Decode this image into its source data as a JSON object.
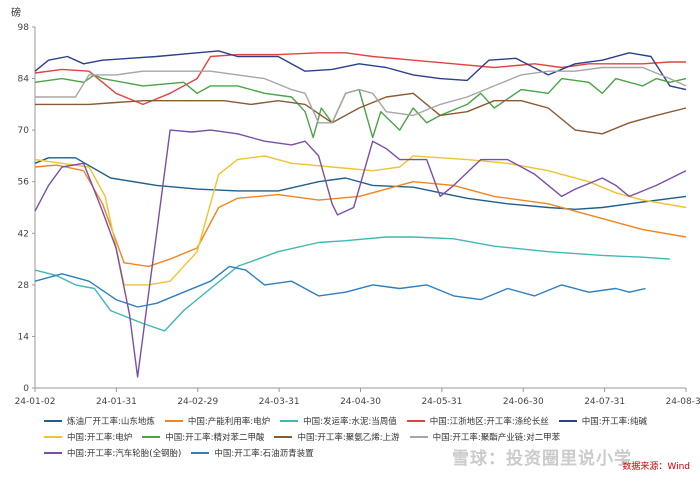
{
  "unit_label": "磅",
  "source_text": "数据来源：Wind",
  "watermark_text": "雪球：投资圈里说小学",
  "chart_data": {
    "type": "line",
    "ylim": [
      0,
      98
    ],
    "yticks": [
      0,
      14,
      28,
      42,
      56,
      70,
      84,
      98
    ],
    "xticks": [
      "24-01-02",
      "24-01-31",
      "24-02-29",
      "24-03-31",
      "24-04-30",
      "24-05-31",
      "24-06-30",
      "24-07-31",
      "24-08-30"
    ],
    "xlim_days": [
      0,
      241
    ],
    "grid": false,
    "legend_position": "bottom",
    "series": [
      {
        "name": "炼油厂开工率:山东地炼",
        "color": "#1f5f8b",
        "points": [
          [
            0,
            61
          ],
          [
            5,
            62.5
          ],
          [
            15,
            62.5
          ],
          [
            28,
            57
          ],
          [
            45,
            55
          ],
          [
            60,
            54
          ],
          [
            75,
            53.5
          ],
          [
            90,
            53.5
          ],
          [
            105,
            56
          ],
          [
            115,
            57
          ],
          [
            125,
            55
          ],
          [
            140,
            54.5
          ],
          [
            160,
            51.5
          ],
          [
            175,
            50
          ],
          [
            190,
            49
          ],
          [
            200,
            48.5
          ],
          [
            210,
            49
          ],
          [
            225,
            50.5
          ],
          [
            241,
            52
          ]
        ]
      },
      {
        "name": "中国:产能利用率:电炉",
        "color": "#f0861e",
        "points": [
          [
            0,
            60
          ],
          [
            8,
            60.5
          ],
          [
            18,
            59
          ],
          [
            25,
            50
          ],
          [
            33,
            34
          ],
          [
            42,
            33
          ],
          [
            50,
            35
          ],
          [
            60,
            38
          ],
          [
            68,
            49
          ],
          [
            75,
            51.5
          ],
          [
            90,
            52.5
          ],
          [
            105,
            51
          ],
          [
            120,
            52
          ],
          [
            130,
            54
          ],
          [
            140,
            56
          ],
          [
            155,
            55
          ],
          [
            170,
            52
          ],
          [
            190,
            50
          ],
          [
            210,
            46
          ],
          [
            225,
            43
          ],
          [
            241,
            41
          ]
        ]
      },
      {
        "name": "中国:发运率:水泥:当周值",
        "color": "#3fb8b4",
        "points": [
          [
            0,
            32
          ],
          [
            8,
            30.5
          ],
          [
            15,
            28
          ],
          [
            22,
            27
          ],
          [
            28,
            21
          ],
          [
            40,
            17.5
          ],
          [
            48,
            15.5
          ],
          [
            55,
            21
          ],
          [
            65,
            27
          ],
          [
            75,
            33
          ],
          [
            90,
            37
          ],
          [
            105,
            39.5
          ],
          [
            115,
            40
          ],
          [
            130,
            41
          ],
          [
            140,
            41
          ],
          [
            155,
            40.5
          ],
          [
            170,
            38.5
          ],
          [
            190,
            37
          ],
          [
            210,
            36
          ],
          [
            225,
            35.5
          ],
          [
            235,
            35
          ]
        ]
      },
      {
        "name": "中国:江浙地区:开工率:涤纶长丝",
        "color": "#e2433f",
        "points": [
          [
            0,
            85.5
          ],
          [
            10,
            86.5
          ],
          [
            20,
            86
          ],
          [
            30,
            80
          ],
          [
            40,
            77
          ],
          [
            50,
            80
          ],
          [
            60,
            84
          ],
          [
            65,
            90
          ],
          [
            75,
            90.5
          ],
          [
            90,
            90.5
          ],
          [
            105,
            91
          ],
          [
            115,
            91
          ],
          [
            125,
            90
          ],
          [
            140,
            89
          ],
          [
            155,
            88
          ],
          [
            170,
            87
          ],
          [
            185,
            88
          ],
          [
            195,
            87
          ],
          [
            205,
            88
          ],
          [
            215,
            88
          ],
          [
            225,
            88
          ],
          [
            235,
            88.5
          ],
          [
            241,
            88.5
          ]
        ]
      },
      {
        "name": "中国:开工率:纯碱",
        "color": "#2b3f8c",
        "points": [
          [
            0,
            86
          ],
          [
            5,
            89
          ],
          [
            12,
            90
          ],
          [
            18,
            88
          ],
          [
            25,
            89
          ],
          [
            35,
            89.5
          ],
          [
            45,
            90
          ],
          [
            60,
            91
          ],
          [
            68,
            91.5
          ],
          [
            75,
            90
          ],
          [
            90,
            90
          ],
          [
            100,
            86
          ],
          [
            110,
            86.5
          ],
          [
            120,
            88
          ],
          [
            130,
            87
          ],
          [
            140,
            85
          ],
          [
            150,
            84
          ],
          [
            160,
            83.5
          ],
          [
            168,
            89
          ],
          [
            178,
            89.5
          ],
          [
            190,
            85
          ],
          [
            200,
            88
          ],
          [
            210,
            89
          ],
          [
            220,
            91
          ],
          [
            228,
            90
          ],
          [
            235,
            82
          ],
          [
            241,
            81
          ]
        ]
      },
      {
        "name": "中国:开工率:电炉",
        "color": "#f1c232",
        "points": [
          [
            0,
            62
          ],
          [
            10,
            61
          ],
          [
            20,
            60
          ],
          [
            26,
            52
          ],
          [
            33,
            28
          ],
          [
            42,
            28
          ],
          [
            50,
            29
          ],
          [
            60,
            37
          ],
          [
            68,
            58
          ],
          [
            75,
            62
          ],
          [
            85,
            63
          ],
          [
            95,
            61
          ],
          [
            110,
            60
          ],
          [
            125,
            59
          ],
          [
            135,
            60
          ],
          [
            140,
            63
          ],
          [
            160,
            62
          ],
          [
            175,
            61
          ],
          [
            190,
            59
          ],
          [
            205,
            56
          ],
          [
            215,
            53
          ],
          [
            225,
            51
          ],
          [
            241,
            49
          ]
        ]
      },
      {
        "name": "中国:开工率:精对苯二甲酸",
        "color": "#4aa347",
        "points": [
          [
            0,
            83
          ],
          [
            10,
            84
          ],
          [
            18,
            83
          ],
          [
            22,
            85
          ],
          [
            25,
            84
          ],
          [
            40,
            82
          ],
          [
            55,
            83
          ],
          [
            60,
            80
          ],
          [
            65,
            82
          ],
          [
            75,
            82
          ],
          [
            85,
            80
          ],
          [
            95,
            79
          ],
          [
            100,
            75
          ],
          [
            103,
            68
          ],
          [
            106,
            76
          ],
          [
            110,
            72
          ],
          [
            115,
            80
          ],
          [
            120,
            81
          ],
          [
            125,
            68
          ],
          [
            128,
            75
          ],
          [
            135,
            70
          ],
          [
            140,
            76
          ],
          [
            145,
            72
          ],
          [
            150,
            74
          ],
          [
            160,
            77
          ],
          [
            165,
            80
          ],
          [
            170,
            76
          ],
          [
            180,
            81
          ],
          [
            190,
            80
          ],
          [
            195,
            84
          ],
          [
            205,
            83
          ],
          [
            210,
            80
          ],
          [
            215,
            84
          ],
          [
            220,
            83
          ],
          [
            225,
            82
          ],
          [
            230,
            84
          ],
          [
            235,
            83
          ],
          [
            241,
            84
          ]
        ]
      },
      {
        "name": "中国:开工率:聚氨乙烯:上游",
        "color": "#8a5a32",
        "points": [
          [
            0,
            77
          ],
          [
            10,
            77
          ],
          [
            20,
            77
          ],
          [
            30,
            77.5
          ],
          [
            40,
            78
          ],
          [
            50,
            78
          ],
          [
            60,
            78
          ],
          [
            70,
            78
          ],
          [
            80,
            77
          ],
          [
            90,
            78
          ],
          [
            100,
            77
          ],
          [
            110,
            72
          ],
          [
            120,
            76
          ],
          [
            130,
            79
          ],
          [
            140,
            80
          ],
          [
            145,
            77
          ],
          [
            150,
            74
          ],
          [
            160,
            75
          ],
          [
            170,
            78
          ],
          [
            180,
            78
          ],
          [
            190,
            76
          ],
          [
            200,
            70
          ],
          [
            210,
            69
          ],
          [
            220,
            72
          ],
          [
            230,
            74
          ],
          [
            241,
            76
          ]
        ]
      },
      {
        "name": "中国:开工率:聚酯产业链:对二甲苯",
        "color": "#a6a6a6",
        "points": [
          [
            0,
            79
          ],
          [
            15,
            79
          ],
          [
            20,
            85
          ],
          [
            30,
            85
          ],
          [
            40,
            86
          ],
          [
            55,
            86
          ],
          [
            65,
            86
          ],
          [
            75,
            85
          ],
          [
            85,
            84
          ],
          [
            95,
            81
          ],
          [
            100,
            80
          ],
          [
            105,
            72
          ],
          [
            110,
            72
          ],
          [
            115,
            80
          ],
          [
            120,
            81
          ],
          [
            125,
            80
          ],
          [
            130,
            75
          ],
          [
            140,
            74
          ],
          [
            150,
            77
          ],
          [
            160,
            79
          ],
          [
            170,
            82
          ],
          [
            180,
            85
          ],
          [
            190,
            86
          ],
          [
            200,
            86
          ],
          [
            210,
            87
          ],
          [
            225,
            87
          ],
          [
            235,
            84
          ],
          [
            241,
            82
          ]
        ]
      },
      {
        "name": "中国:开工率:汽车轮胎(全钢胎)",
        "color": "#7a4fa8",
        "points": [
          [
            0,
            48
          ],
          [
            5,
            55
          ],
          [
            10,
            60
          ],
          [
            18,
            61
          ],
          [
            25,
            48
          ],
          [
            30,
            38
          ],
          [
            35,
            20
          ],
          [
            38,
            3
          ],
          [
            41,
            20
          ],
          [
            45,
            42
          ],
          [
            50,
            70
          ],
          [
            58,
            69.5
          ],
          [
            65,
            70
          ],
          [
            75,
            69
          ],
          [
            85,
            67
          ],
          [
            95,
            66
          ],
          [
            100,
            67
          ],
          [
            105,
            63
          ],
          [
            110,
            50
          ],
          [
            112,
            47
          ],
          [
            118,
            49
          ],
          [
            125,
            67
          ],
          [
            130,
            65
          ],
          [
            135,
            62
          ],
          [
            145,
            62
          ],
          [
            150,
            52
          ],
          [
            155,
            55
          ],
          [
            165,
            62
          ],
          [
            175,
            62
          ],
          [
            185,
            58
          ],
          [
            195,
            52
          ],
          [
            200,
            54
          ],
          [
            210,
            57
          ],
          [
            215,
            55
          ],
          [
            220,
            52
          ],
          [
            230,
            55
          ],
          [
            241,
            59
          ]
        ]
      },
      {
        "name": "中国:开工率:石油沥青装置",
        "color": "#2e7fc2",
        "points": [
          [
            0,
            29
          ],
          [
            10,
            31
          ],
          [
            20,
            29
          ],
          [
            30,
            24
          ],
          [
            38,
            22
          ],
          [
            45,
            23
          ],
          [
            55,
            26
          ],
          [
            65,
            29
          ],
          [
            72,
            33
          ],
          [
            78,
            32
          ],
          [
            85,
            28
          ],
          [
            95,
            29
          ],
          [
            105,
            25
          ],
          [
            115,
            26
          ],
          [
            125,
            28
          ],
          [
            135,
            27
          ],
          [
            145,
            28
          ],
          [
            155,
            25
          ],
          [
            165,
            24
          ],
          [
            175,
            27
          ],
          [
            185,
            25
          ],
          [
            195,
            28
          ],
          [
            205,
            26
          ],
          [
            215,
            27
          ],
          [
            220,
            26
          ],
          [
            226,
            27
          ]
        ]
      }
    ]
  }
}
